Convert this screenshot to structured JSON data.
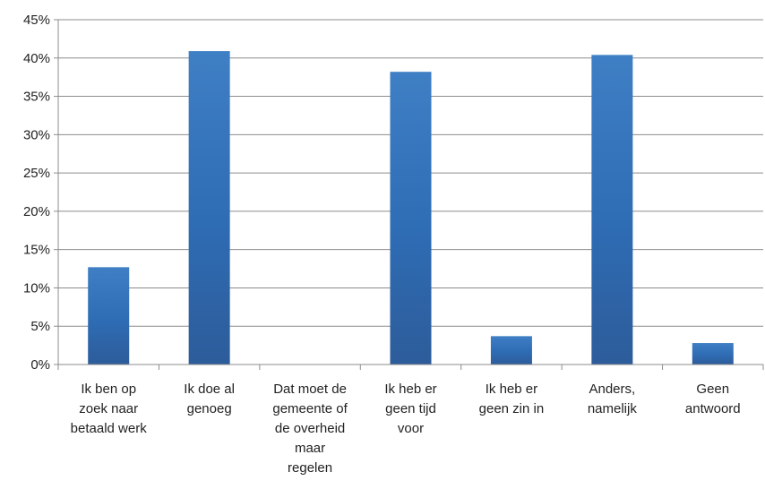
{
  "chart_data": {
    "type": "bar",
    "categories": [
      "Ik ben op zoek naar betaald werk",
      "Ik doe al genoeg",
      "Dat moet de gemeente of de overheid maar regelen",
      "Ik heb er geen tijd voor",
      "Ik heb er geen zin in",
      "Anders, namelijk",
      "Geen antwoord"
    ],
    "category_lines": [
      [
        "Ik ben op",
        "zoek naar",
        "betaald werk"
      ],
      [
        "Ik doe al",
        "genoeg"
      ],
      [
        "Dat moet de",
        "gemeente of",
        "de overheid",
        "maar",
        "regelen"
      ],
      [
        "Ik heb er",
        "geen tijd",
        "voor"
      ],
      [
        "Ik heb er",
        "geen zin in"
      ],
      [
        "Anders,",
        "namelijk"
      ],
      [
        "Geen",
        "antwoord"
      ]
    ],
    "values": [
      12.7,
      40.9,
      0,
      38.2,
      3.7,
      40.4,
      2.8
    ],
    "ylim": [
      0,
      45
    ],
    "yticks": [
      "0%",
      "5%",
      "10%",
      "15%",
      "20%",
      "25%",
      "30%",
      "35%",
      "40%",
      "45%"
    ],
    "grid": true,
    "legend": false,
    "colors": {
      "bar_top": "#3f7fc4",
      "bar_bottom": "#2d5c9a",
      "grid": "#8c8c8c",
      "axis": "#8c8c8c"
    }
  }
}
